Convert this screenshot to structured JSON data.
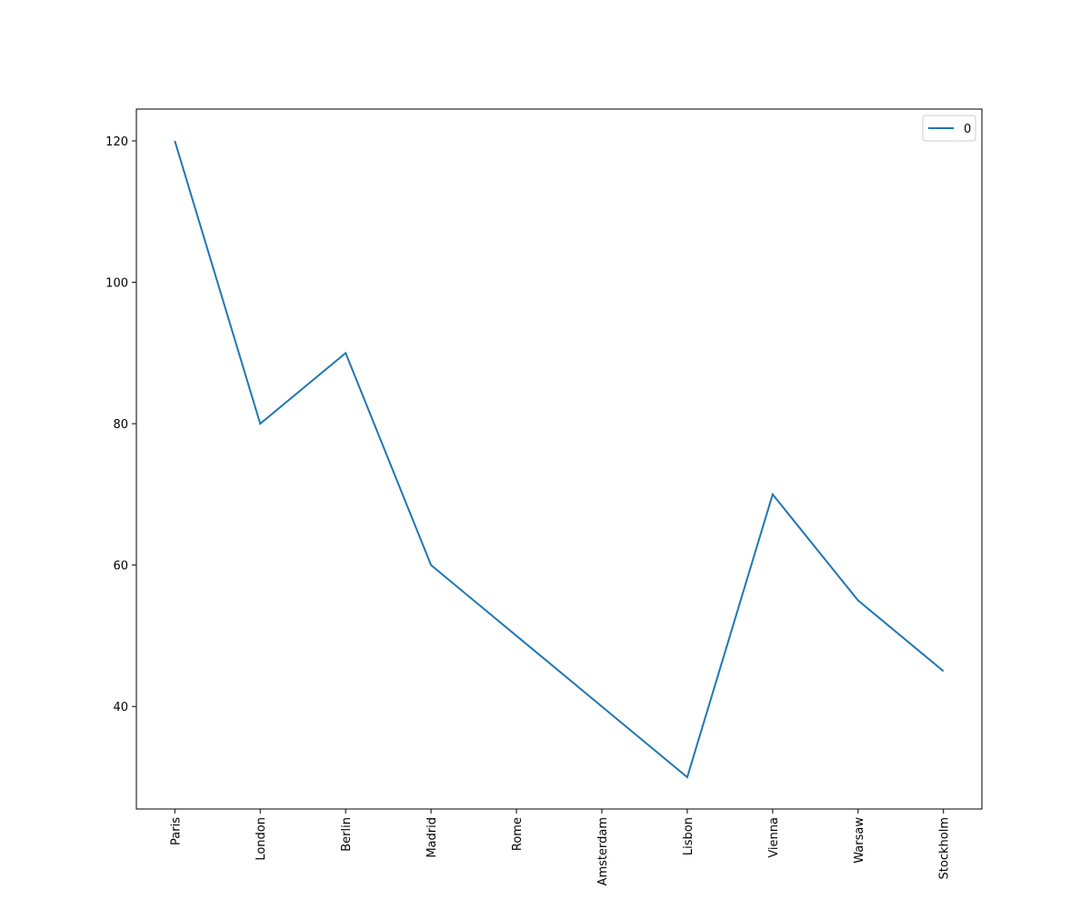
{
  "chart_data": {
    "type": "line",
    "categories": [
      "Paris",
      "London",
      "Berlin",
      "Madrid",
      "Rome",
      "Amsterdam",
      "Lisbon",
      "Vienna",
      "Warsaw",
      "Stockholm"
    ],
    "series": [
      {
        "name": "0",
        "color": "#1f77b4",
        "values": [
          120,
          80,
          90,
          60,
          50,
          40,
          30,
          70,
          55,
          45
        ]
      }
    ],
    "ylim": [
      25.5,
      124.5
    ],
    "yticks": [
      40,
      60,
      80,
      100,
      120
    ],
    "legend": "upper right"
  }
}
